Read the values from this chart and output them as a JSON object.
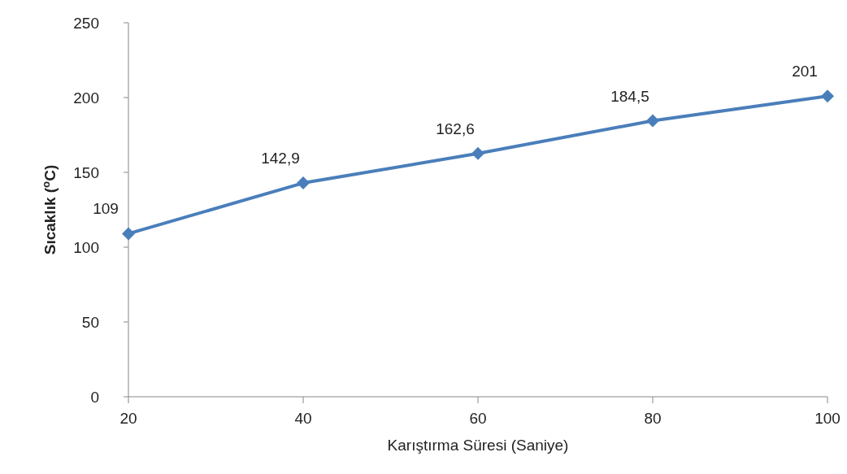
{
  "chart_data": {
    "type": "line",
    "xlabel": "Karıştırma Süresi (Saniye)",
    "ylabel": "Sıcaklık ($^{o}$C)",
    "categories": [
      "20",
      "40",
      "60",
      "80",
      "100"
    ],
    "series": [
      {
        "color": "#4a7ebb",
        "values": [
          109,
          142.9,
          162.6,
          184.5,
          201
        ],
        "value_labels": [
          "109",
          "142,9",
          "162,6",
          "184,5",
          "201"
        ]
      }
    ],
    "ylim": [
      0,
      250
    ],
    "yticks": [
      0,
      50,
      100,
      150,
      200,
      250
    ],
    "marker": "diamond",
    "line_style": "solid"
  }
}
